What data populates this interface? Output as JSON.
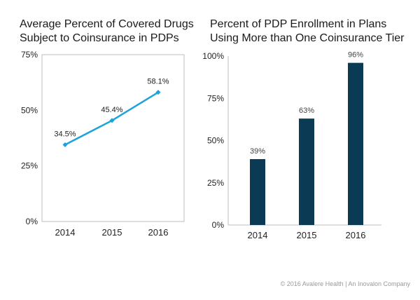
{
  "chart_data": [
    {
      "type": "line",
      "title": "Average Percent of Covered Drugs\nSubject to Coinsurance in PDPs",
      "categories": [
        "2014",
        "2015",
        "2016"
      ],
      "values": [
        34.5,
        45.4,
        58.1
      ],
      "data_labels": [
        "34.5%",
        "45.4%",
        "58.1%"
      ],
      "yticks": [
        0,
        25,
        50,
        75
      ],
      "ytick_labels": [
        "0%",
        "25%",
        "50%",
        "75%"
      ],
      "ylim": [
        0,
        75
      ],
      "xlabel": "",
      "ylabel": "",
      "grid": false,
      "color": "#1aa3dc"
    },
    {
      "type": "bar",
      "title": "Percent of PDP Enrollment in Plans\nUsing More than One Coinsurance Tier",
      "categories": [
        "2014",
        "2015",
        "2016"
      ],
      "values": [
        39,
        63,
        96
      ],
      "data_labels": [
        "39%",
        "63%",
        "96%"
      ],
      "yticks": [
        0,
        25,
        50,
        75,
        100
      ],
      "ytick_labels": [
        "0%",
        "25%",
        "50%",
        "75%",
        "100%"
      ],
      "ylim": [
        0,
        100
      ],
      "xlabel": "",
      "ylabel": "",
      "grid": false,
      "color": "#0b3a55"
    }
  ],
  "footer": "© 2016 Avalere Health | An Inovalon Company"
}
